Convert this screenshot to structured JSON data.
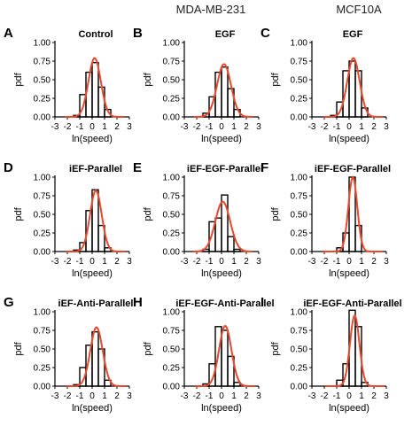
{
  "figure": {
    "column_titles": [
      "MDA-MB-231",
      "MCF10A"
    ]
  },
  "colors": {
    "bar_edge": "#000000",
    "fit_line": "#e8482c",
    "axis": "#000000"
  },
  "chart_data": [
    {
      "panel": "A",
      "title": "Control",
      "type": "bar",
      "xlabel": "ln(speed)",
      "ylabel": "pdf",
      "xticks": [
        "-3",
        "-2",
        "-1",
        "0",
        "1",
        "2",
        "3"
      ],
      "yticks": [
        "0.00",
        "0.25",
        "0.50",
        "0.75",
        "1.00"
      ],
      "xlim": [
        -3,
        3
      ],
      "ylim": [
        0,
        1
      ],
      "bin_centers": [
        -1.25,
        -0.75,
        -0.25,
        0.25,
        0.75,
        1.25
      ],
      "values": [
        0.02,
        0.3,
        0.6,
        0.73,
        0.4,
        0.1
      ],
      "fit": {
        "type": "gaussian",
        "mean": 0.2,
        "sd": 0.5,
        "peak": 0.79
      }
    },
    {
      "panel": "B",
      "title": "EGF",
      "type": "bar",
      "xlabel": "ln(speed)",
      "ylabel": "pdf",
      "xticks": [
        "-3",
        "-2",
        "-1",
        "0",
        "1",
        "2",
        "3"
      ],
      "yticks": [
        "0.00",
        "0.25",
        "0.50",
        "0.75",
        "1.00"
      ],
      "xlim": [
        -3,
        3
      ],
      "ylim": [
        0,
        1
      ],
      "bin_centers": [
        -1.25,
        -0.75,
        -0.25,
        0.25,
        0.75,
        1.25
      ],
      "values": [
        0.05,
        0.27,
        0.6,
        0.67,
        0.38,
        0.1
      ],
      "fit": {
        "type": "gaussian",
        "mean": 0.2,
        "sd": 0.56,
        "peak": 0.71
      }
    },
    {
      "panel": "C",
      "title": "EGF",
      "type": "bar",
      "xlabel": "ln(speed)",
      "ylabel": "pdf",
      "xticks": [
        "-3",
        "-2",
        "-1",
        "0",
        "1",
        "2",
        "3"
      ],
      "yticks": [
        "0.00",
        "0.25",
        "0.50",
        "0.75",
        "1.00"
      ],
      "xlim": [
        -3,
        3
      ],
      "ylim": [
        0,
        1
      ],
      "bin_centers": [
        -1.25,
        -0.75,
        -0.25,
        0.25,
        0.75,
        1.25
      ],
      "values": [
        0.02,
        0.2,
        0.62,
        0.75,
        0.62,
        0.12
      ],
      "fit": {
        "type": "gaussian",
        "mean": 0.35,
        "sd": 0.5,
        "peak": 0.79
      }
    },
    {
      "panel": "D",
      "title": "iEF-Parallel",
      "type": "bar",
      "xlabel": "ln(speed)",
      "ylabel": "pdf",
      "xticks": [
        "-3",
        "-2",
        "-1",
        "0",
        "1",
        "2",
        "3"
      ],
      "yticks": [
        "0.00",
        "0.25",
        "0.50",
        "0.75",
        "1.00"
      ],
      "xlim": [
        -3,
        3
      ],
      "ylim": [
        0,
        1
      ],
      "bin_centers": [
        -1.25,
        -0.75,
        -0.25,
        0.25,
        0.75,
        1.25
      ],
      "values": [
        0.02,
        0.12,
        0.55,
        0.83,
        0.35,
        0.05
      ],
      "fit": {
        "type": "gaussian",
        "mean": 0.3,
        "sd": 0.47,
        "peak": 0.82
      }
    },
    {
      "panel": "E",
      "title": "iEF-EGF-Parallel",
      "type": "bar",
      "xlabel": "ln(speed)",
      "ylabel": "pdf",
      "xticks": [
        "-3",
        "-2",
        "-1",
        "0",
        "1",
        "2",
        "3"
      ],
      "yticks": [
        "0.00",
        "0.25",
        "0.50",
        "0.75",
        "1.00"
      ],
      "xlim": [
        -3,
        3
      ],
      "ylim": [
        0,
        1
      ],
      "bin_centers": [
        -1.25,
        -0.75,
        -0.25,
        0.25,
        0.75,
        1.25
      ],
      "values": [
        0.03,
        0.4,
        0.45,
        0.76,
        0.2,
        0.03
      ],
      "fit": {
        "type": "gaussian",
        "mean": 0.1,
        "sd": 0.6,
        "peak": 0.67
      }
    },
    {
      "panel": "F",
      "title": "iEF-EGF-Parallel",
      "type": "bar",
      "xlabel": "ln(speed)",
      "ylabel": "pdf",
      "xticks": [
        "-3",
        "-2",
        "-1",
        "0",
        "1",
        "2",
        "3"
      ],
      "yticks": [
        "0.00",
        "0.25",
        "0.50",
        "0.75",
        "1.00"
      ],
      "xlim": [
        -3,
        3
      ],
      "ylim": [
        0,
        1
      ],
      "bin_centers": [
        -1.25,
        -0.75,
        -0.25,
        0.25,
        0.75,
        1.25
      ],
      "values": [
        0.0,
        0.05,
        0.25,
        1.0,
        0.35,
        0.0
      ],
      "fit": {
        "type": "gaussian",
        "mean": 0.3,
        "sd": 0.36,
        "peak": 1.0
      }
    },
    {
      "panel": "G",
      "title": "iEF-Anti-Parallel",
      "type": "bar",
      "xlabel": "ln(speed)",
      "ylabel": "pdf",
      "xticks": [
        "-3",
        "-2",
        "-1",
        "0",
        "1",
        "2",
        "3"
      ],
      "yticks": [
        "0.00",
        "0.25",
        "0.50",
        "0.75",
        "1.00"
      ],
      "xlim": [
        -3,
        3
      ],
      "ylim": [
        0,
        1
      ],
      "bin_centers": [
        -1.25,
        -0.75,
        -0.25,
        0.25,
        0.75,
        1.25
      ],
      "values": [
        0.02,
        0.25,
        0.55,
        0.73,
        0.5,
        0.08
      ],
      "fit": {
        "type": "gaussian",
        "mean": 0.35,
        "sd": 0.5,
        "peak": 0.79
      }
    },
    {
      "panel": "H",
      "title": "iEF-EGF-Anti-Parallel",
      "type": "bar",
      "xlabel": "ln(speed)",
      "ylabel": "pdf",
      "xticks": [
        "-3",
        "-2",
        "-1",
        "0",
        "1",
        "2",
        "3"
      ],
      "yticks": [
        "0.00",
        "0.25",
        "0.50",
        "0.75",
        "1.00"
      ],
      "xlim": [
        -3,
        3
      ],
      "ylim": [
        0,
        1
      ],
      "bin_centers": [
        -1.25,
        -0.75,
        -0.25,
        0.25,
        0.75,
        1.25
      ],
      "values": [
        0.03,
        0.3,
        0.8,
        0.75,
        0.4,
        0.05
      ],
      "fit": {
        "type": "gaussian",
        "mean": 0.3,
        "sd": 0.5,
        "peak": 0.81
      }
    },
    {
      "panel": "I",
      "title": "iEF-EGF-Anti-Parallel",
      "type": "bar",
      "xlabel": "ln(speed)",
      "ylabel": "pdf",
      "xticks": [
        "-3",
        "-2",
        "-1",
        "0",
        "1",
        "2",
        "3"
      ],
      "yticks": [
        "0.00",
        "0.25",
        "0.50",
        "0.75",
        "1.00"
      ],
      "xlim": [
        -3,
        3
      ],
      "ylim": [
        0,
        1
      ],
      "bin_centers": [
        -1.25,
        -0.75,
        -0.25,
        0.25,
        0.75,
        1.25
      ],
      "values": [
        0.0,
        0.08,
        0.3,
        1.02,
        0.8,
        0.05
      ],
      "fit": {
        "type": "gaussian",
        "mean": 0.45,
        "sd": 0.38,
        "peak": 0.95
      }
    }
  ]
}
